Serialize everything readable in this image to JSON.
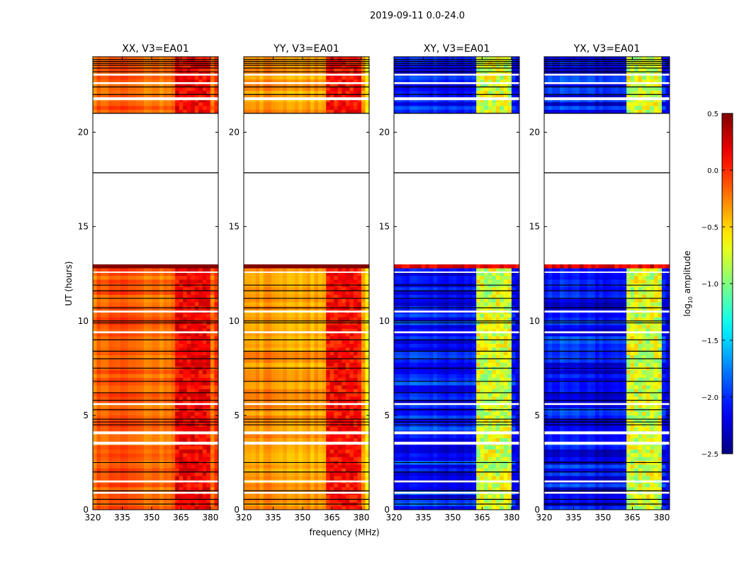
{
  "chart_data": {
    "type": "heatmap",
    "title": "2019-09-11 0.0-24.0",
    "xlabel": "frequency (MHz)",
    "ylabel": "UT (hours)",
    "colorbar_label": "log10 amplitude",
    "colorbar_label_main": "log",
    "colorbar_label_sub": "10",
    "colorbar_label_rest": " amplitude",
    "clim": [
      -2.5,
      0.5
    ],
    "colorbar_ticks": [
      "0.5",
      "0.0",
      "−0.5",
      "−1.0",
      "−1.5",
      "−2.0",
      "−2.5"
    ],
    "colorbar_tick_values": [
      0.5,
      0.0,
      -0.5,
      -1.0,
      -1.5,
      -2.0,
      -2.5
    ],
    "colormap": "jet",
    "xlim": [
      320,
      384
    ],
    "ylim": [
      0,
      24
    ],
    "xticks": [
      320,
      335,
      350,
      365,
      380
    ],
    "xtick_labels": [
      "320",
      "335",
      "350",
      "365",
      "380"
    ],
    "yticks": [
      0,
      5,
      10,
      15,
      20
    ],
    "ytick_labels": [
      "0",
      "5",
      "10",
      "15",
      "20"
    ],
    "panels": [
      {
        "title": "XX, V3=EA01",
        "base": -0.2,
        "lowfreq_boost": 0.12,
        "rfi": 0.15,
        "edge": -0.05
      },
      {
        "title": "YY, V3=EA01",
        "base": -0.35,
        "lowfreq_boost": 0.05,
        "rfi": 0.1,
        "edge": -0.65
      },
      {
        "title": "XY, V3=EA01",
        "base": -2.1,
        "lowfreq_boost": 0.1,
        "rfi": -0.75,
        "edge": -2.2
      },
      {
        "title": "YX, V3=EA01",
        "base": -2.15,
        "lowfreq_boost": 0.1,
        "rfi": -0.75,
        "edge": -2.2
      }
    ],
    "data_time_ranges": [
      [
        0,
        13.0
      ],
      [
        21.0,
        24
      ]
    ],
    "saturated_band_hours": [
      12.6,
      13.0
    ],
    "gap_hours": [
      [
        0.85,
        0.95
      ],
      [
        1.45,
        1.55
      ],
      [
        3.45,
        3.6
      ],
      [
        4.0,
        4.15
      ],
      [
        5.55,
        5.65
      ],
      [
        9.35,
        9.45
      ],
      [
        10.45,
        10.55
      ],
      [
        12.55,
        12.62
      ],
      [
        21.7,
        21.85
      ],
      [
        22.55,
        22.65
      ],
      [
        23.0,
        23.1
      ]
    ],
    "flag_line_hours": [
      0.3,
      0.55,
      1.0,
      2.0,
      2.5,
      4.5,
      4.65,
      4.8,
      5.3,
      5.8,
      6.2,
      6.8,
      7.5,
      8.0,
      8.4,
      9.0,
      9.9,
      10.0,
      10.7,
      11.2,
      11.6,
      11.9,
      17.85,
      21.0,
      22.0,
      22.4,
      23.2,
      23.4,
      23.55,
      23.65,
      23.75,
      23.85
    ],
    "rfi_band_mhz": [
      362,
      380
    ]
  }
}
